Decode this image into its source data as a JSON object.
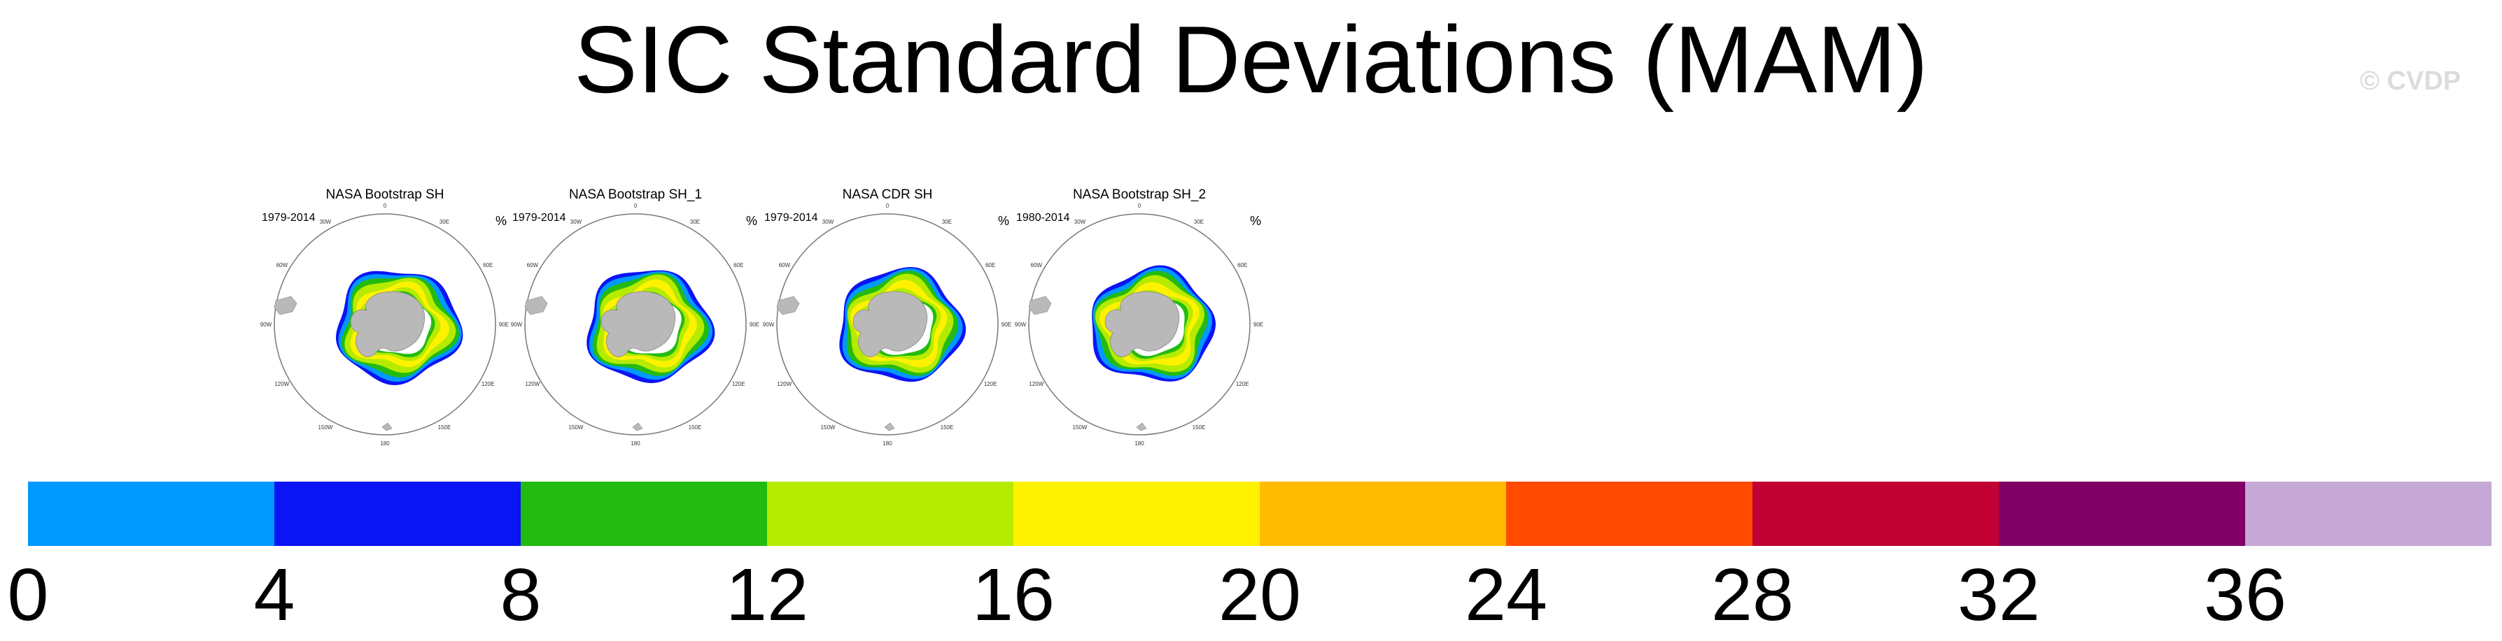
{
  "title": "SIC Standard Deviations (MAM)",
  "watermark": "© CVDP",
  "panels": [
    {
      "title": "NASA Bootstrap SH",
      "period": "1979-2014",
      "unit": "%"
    },
    {
      "title": "NASA Bootstrap SH_1",
      "period": "1979-2014",
      "unit": "%"
    },
    {
      "title": "NASA CDR SH",
      "period": "1979-2014",
      "unit": "%"
    },
    {
      "title": "NASA Bootstrap SH_2",
      "period": "1980-2014",
      "unit": "%"
    }
  ],
  "map_labels": [
    "0",
    "30E",
    "60E",
    "90E",
    "120E",
    "150E",
    "180",
    "150W",
    "120W",
    "90W",
    "60W",
    "30W"
  ],
  "colorbar": {
    "ticks": [
      "0",
      "4",
      "8",
      "12",
      "16",
      "20",
      "24",
      "28",
      "32",
      "36"
    ],
    "colors": [
      "#0099ff",
      "#0a14f5",
      "#23bb12",
      "#b6eb00",
      "#fff200",
      "#ffbb00",
      "#ff4a00",
      "#c10033",
      "#800066",
      "#c6a8d6"
    ]
  },
  "chart_data": {
    "type": "heatmap",
    "title": "SIC Standard Deviations (MAM)",
    "variable": "SIC standard deviation",
    "season": "MAM",
    "units": "%",
    "projection": "south polar stereographic",
    "panels": [
      {
        "name": "NASA Bootstrap SH",
        "period": "1979-2014"
      },
      {
        "name": "NASA Bootstrap SH_1",
        "period": "1979-2014"
      },
      {
        "name": "NASA CDR SH",
        "period": "1979-2014"
      },
      {
        "name": "NASA Bootstrap SH_2",
        "period": "1980-2014"
      }
    ],
    "colorbar_levels": [
      0,
      4,
      8,
      12,
      16,
      20,
      24,
      28,
      32,
      36
    ],
    "colorbar_range": [
      0,
      40
    ]
  }
}
